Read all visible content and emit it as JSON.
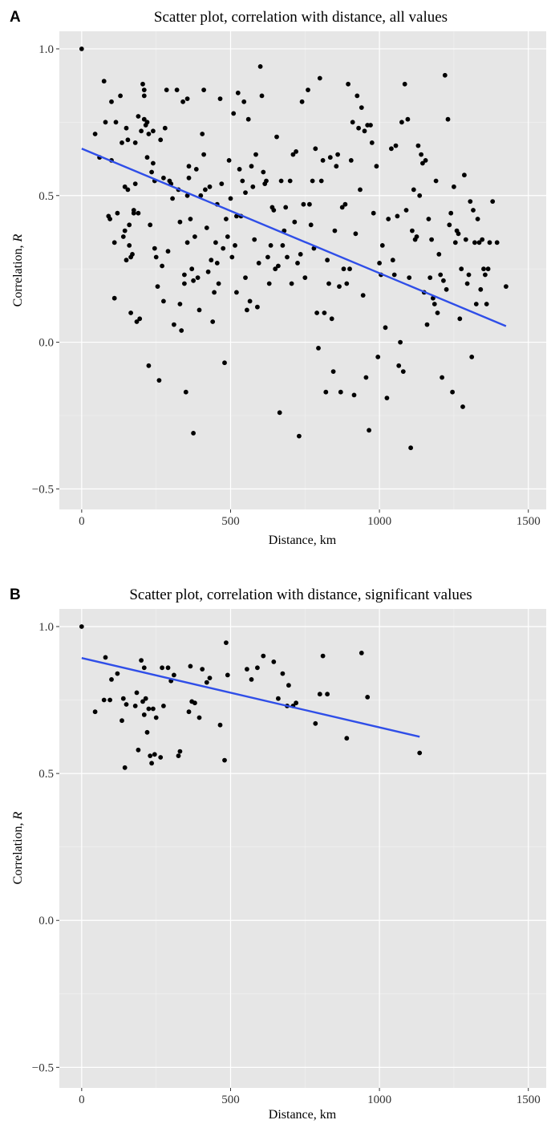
{
  "chart_data": [
    {
      "panel_label": "A",
      "type": "scatter",
      "title": "Scatter plot, correlation with distance, all values",
      "xlabel": "Distance, km",
      "ylabel_prefix": "Correlation, ",
      "ylabel_var": "R",
      "xlim": [
        -75,
        1560
      ],
      "ylim": [
        -0.57,
        1.06
      ],
      "xticks": [
        0,
        500,
        1000,
        1500
      ],
      "xtick_labels": [
        "0",
        "500",
        "1000",
        "1500"
      ],
      "yticks": [
        -0.5,
        0.0,
        0.5,
        1.0
      ],
      "ytick_labels": [
        "−0.5",
        "0.0",
        "0.5",
        "1.0"
      ],
      "grid": true,
      "regression_line": {
        "x": [
          0,
          1425
        ],
        "y": [
          0.66,
          0.055
        ]
      },
      "points": [
        [
          0,
          1.0
        ],
        [
          45,
          0.71
        ],
        [
          60,
          0.63
        ],
        [
          75,
          0.89
        ],
        [
          80,
          0.75
        ],
        [
          90,
          0.43
        ],
        [
          95,
          0.42
        ],
        [
          100,
          0.82
        ],
        [
          100,
          0.62
        ],
        [
          110,
          0.15
        ],
        [
          110,
          0.34
        ],
        [
          115,
          0.75
        ],
        [
          120,
          0.44
        ],
        [
          130,
          0.84
        ],
        [
          135,
          0.68
        ],
        [
          140,
          0.36
        ],
        [
          145,
          0.53
        ],
        [
          145,
          0.38
        ],
        [
          150,
          0.73
        ],
        [
          150,
          0.28
        ],
        [
          155,
          0.69
        ],
        [
          155,
          0.52
        ],
        [
          160,
          0.4
        ],
        [
          160,
          0.33
        ],
        [
          165,
          0.29
        ],
        [
          165,
          0.1
        ],
        [
          170,
          0.3
        ],
        [
          175,
          0.45
        ],
        [
          175,
          0.44
        ],
        [
          180,
          0.68
        ],
        [
          180,
          0.54
        ],
        [
          185,
          0.07
        ],
        [
          190,
          0.77
        ],
        [
          190,
          0.44
        ],
        [
          195,
          0.08
        ],
        [
          200,
          0.72
        ],
        [
          205,
          0.88
        ],
        [
          210,
          0.86
        ],
        [
          210,
          0.84
        ],
        [
          210,
          0.76
        ],
        [
          215,
          0.74
        ],
        [
          220,
          0.75
        ],
        [
          220,
          0.63
        ],
        [
          225,
          0.71
        ],
        [
          225,
          -0.08
        ],
        [
          230,
          0.4
        ],
        [
          235,
          0.58
        ],
        [
          240,
          0.72
        ],
        [
          240,
          0.61
        ],
        [
          245,
          0.55
        ],
        [
          245,
          0.32
        ],
        [
          250,
          0.29
        ],
        [
          255,
          0.19
        ],
        [
          260,
          -0.13
        ],
        [
          265,
          0.69
        ],
        [
          270,
          0.26
        ],
        [
          275,
          0.56
        ],
        [
          275,
          0.14
        ],
        [
          280,
          0.73
        ],
        [
          285,
          0.86
        ],
        [
          290,
          0.31
        ],
        [
          295,
          0.55
        ],
        [
          300,
          0.54
        ],
        [
          305,
          0.49
        ],
        [
          310,
          0.06
        ],
        [
          320,
          0.86
        ],
        [
          325,
          0.52
        ],
        [
          330,
          0.41
        ],
        [
          330,
          0.13
        ],
        [
          335,
          0.04
        ],
        [
          340,
          0.82
        ],
        [
          345,
          0.23
        ],
        [
          345,
          0.2
        ],
        [
          350,
          -0.17
        ],
        [
          355,
          0.83
        ],
        [
          355,
          0.5
        ],
        [
          355,
          0.34
        ],
        [
          360,
          0.6
        ],
        [
          360,
          0.56
        ],
        [
          365,
          0.42
        ],
        [
          370,
          0.25
        ],
        [
          375,
          0.21
        ],
        [
          375,
          -0.31
        ],
        [
          380,
          0.36
        ],
        [
          385,
          0.59
        ],
        [
          390,
          0.22
        ],
        [
          395,
          0.11
        ],
        [
          400,
          0.5
        ],
        [
          405,
          0.71
        ],
        [
          410,
          0.86
        ],
        [
          410,
          0.64
        ],
        [
          415,
          0.52
        ],
        [
          420,
          0.39
        ],
        [
          425,
          0.24
        ],
        [
          430,
          0.53
        ],
        [
          435,
          0.28
        ],
        [
          440,
          0.07
        ],
        [
          445,
          0.17
        ],
        [
          450,
          0.34
        ],
        [
          455,
          0.47
        ],
        [
          455,
          0.27
        ],
        [
          460,
          0.2
        ],
        [
          465,
          0.83
        ],
        [
          470,
          0.54
        ],
        [
          475,
          0.32
        ],
        [
          480,
          -0.07
        ],
        [
          485,
          0.42
        ],
        [
          490,
          0.36
        ],
        [
          495,
          0.62
        ],
        [
          500,
          0.49
        ],
        [
          505,
          0.29
        ],
        [
          510,
          0.78
        ],
        [
          515,
          0.33
        ],
        [
          520,
          0.43
        ],
        [
          520,
          0.17
        ],
        [
          525,
          0.85
        ],
        [
          530,
          0.59
        ],
        [
          535,
          0.43
        ],
        [
          540,
          0.55
        ],
        [
          545,
          0.82
        ],
        [
          550,
          0.51
        ],
        [
          550,
          0.22
        ],
        [
          555,
          0.11
        ],
        [
          560,
          0.76
        ],
        [
          565,
          0.14
        ],
        [
          570,
          0.6
        ],
        [
          575,
          0.53
        ],
        [
          580,
          0.35
        ],
        [
          585,
          0.64
        ],
        [
          590,
          0.12
        ],
        [
          595,
          0.27
        ],
        [
          600,
          0.94
        ],
        [
          605,
          0.84
        ],
        [
          610,
          0.58
        ],
        [
          615,
          0.54
        ],
        [
          620,
          0.55
        ],
        [
          625,
          0.29
        ],
        [
          630,
          0.2
        ],
        [
          635,
          0.33
        ],
        [
          640,
          0.46
        ],
        [
          645,
          0.45
        ],
        [
          650,
          0.25
        ],
        [
          655,
          0.7
        ],
        [
          660,
          0.26
        ],
        [
          665,
          -0.24
        ],
        [
          670,
          0.55
        ],
        [
          675,
          0.33
        ],
        [
          680,
          0.38
        ],
        [
          685,
          0.46
        ],
        [
          690,
          0.29
        ],
        [
          700,
          0.55
        ],
        [
          705,
          0.2
        ],
        [
          710,
          0.64
        ],
        [
          715,
          0.41
        ],
        [
          720,
          0.65
        ],
        [
          725,
          0.27
        ],
        [
          730,
          -0.32
        ],
        [
          735,
          0.3
        ],
        [
          740,
          0.82
        ],
        [
          745,
          0.47
        ],
        [
          750,
          0.22
        ],
        [
          760,
          0.86
        ],
        [
          765,
          0.47
        ],
        [
          770,
          0.4
        ],
        [
          775,
          0.55
        ],
        [
          780,
          0.32
        ],
        [
          785,
          0.66
        ],
        [
          790,
          0.1
        ],
        [
          795,
          -0.02
        ],
        [
          800,
          0.9
        ],
        [
          805,
          0.55
        ],
        [
          810,
          0.62
        ],
        [
          815,
          0.1
        ],
        [
          820,
          -0.17
        ],
        [
          825,
          0.28
        ],
        [
          830,
          0.2
        ],
        [
          835,
          0.63
        ],
        [
          840,
          0.08
        ],
        [
          845,
          -0.1
        ],
        [
          850,
          0.38
        ],
        [
          855,
          0.6
        ],
        [
          860,
          0.64
        ],
        [
          865,
          0.19
        ],
        [
          870,
          -0.17
        ],
        [
          875,
          0.46
        ],
        [
          880,
          0.25
        ],
        [
          885,
          0.47
        ],
        [
          890,
          0.2
        ],
        [
          895,
          0.88
        ],
        [
          900,
          0.25
        ],
        [
          905,
          0.62
        ],
        [
          910,
          0.75
        ],
        [
          915,
          -0.18
        ],
        [
          920,
          0.37
        ],
        [
          925,
          0.84
        ],
        [
          930,
          0.73
        ],
        [
          935,
          0.52
        ],
        [
          940,
          0.8
        ],
        [
          945,
          0.16
        ],
        [
          950,
          0.72
        ],
        [
          955,
          -0.12
        ],
        [
          960,
          0.74
        ],
        [
          965,
          -0.3
        ],
        [
          970,
          0.74
        ],
        [
          975,
          0.68
        ],
        [
          980,
          0.44
        ],
        [
          990,
          0.6
        ],
        [
          995,
          -0.05
        ],
        [
          1000,
          0.27
        ],
        [
          1005,
          0.23
        ],
        [
          1010,
          0.33
        ],
        [
          1020,
          0.05
        ],
        [
          1025,
          -0.19
        ],
        [
          1030,
          0.42
        ],
        [
          1040,
          0.66
        ],
        [
          1045,
          0.28
        ],
        [
          1050,
          0.23
        ],
        [
          1055,
          0.67
        ],
        [
          1060,
          0.43
        ],
        [
          1065,
          -0.08
        ],
        [
          1070,
          0.0
        ],
        [
          1075,
          0.75
        ],
        [
          1080,
          -0.1
        ],
        [
          1085,
          0.88
        ],
        [
          1090,
          0.45
        ],
        [
          1095,
          0.76
        ],
        [
          1100,
          0.22
        ],
        [
          1105,
          -0.36
        ],
        [
          1110,
          0.38
        ],
        [
          1115,
          0.52
        ],
        [
          1120,
          0.35
        ],
        [
          1125,
          0.36
        ],
        [
          1130,
          0.67
        ],
        [
          1135,
          0.5
        ],
        [
          1140,
          0.64
        ],
        [
          1145,
          0.61
        ],
        [
          1150,
          0.17
        ],
        [
          1155,
          0.62
        ],
        [
          1160,
          0.06
        ],
        [
          1165,
          0.42
        ],
        [
          1170,
          0.22
        ],
        [
          1175,
          0.35
        ],
        [
          1180,
          0.15
        ],
        [
          1185,
          0.13
        ],
        [
          1190,
          0.55
        ],
        [
          1195,
          0.1
        ],
        [
          1200,
          0.3
        ],
        [
          1205,
          0.23
        ],
        [
          1210,
          -0.12
        ],
        [
          1215,
          0.21
        ],
        [
          1220,
          0.91
        ],
        [
          1225,
          0.18
        ],
        [
          1230,
          0.76
        ],
        [
          1235,
          0.4
        ],
        [
          1240,
          0.44
        ],
        [
          1245,
          -0.17
        ],
        [
          1250,
          0.53
        ],
        [
          1255,
          0.34
        ],
        [
          1260,
          0.38
        ],
        [
          1265,
          0.37
        ],
        [
          1270,
          0.08
        ],
        [
          1275,
          0.25
        ],
        [
          1280,
          -0.22
        ],
        [
          1285,
          0.57
        ],
        [
          1290,
          0.35
        ],
        [
          1295,
          0.2
        ],
        [
          1300,
          0.23
        ],
        [
          1305,
          0.48
        ],
        [
          1310,
          -0.05
        ],
        [
          1315,
          0.45
        ],
        [
          1320,
          0.34
        ],
        [
          1325,
          0.13
        ],
        [
          1330,
          0.42
        ],
        [
          1335,
          0.34
        ],
        [
          1340,
          0.18
        ],
        [
          1345,
          0.35
        ],
        [
          1350,
          0.25
        ],
        [
          1355,
          0.23
        ],
        [
          1360,
          0.13
        ],
        [
          1365,
          0.25
        ],
        [
          1370,
          0.34
        ],
        [
          1380,
          0.48
        ],
        [
          1395,
          0.34
        ],
        [
          1425,
          0.19
        ]
      ]
    },
    {
      "panel_label": "B",
      "type": "scatter",
      "title": "Scatter plot, correlation with distance, significant values",
      "xlabel": "Distance, km",
      "ylabel_prefix": "Correlation, ",
      "ylabel_var": "R",
      "xlim": [
        -75,
        1560
      ],
      "ylim": [
        -0.57,
        1.06
      ],
      "xticks": [
        0,
        500,
        1000,
        1500
      ],
      "xtick_labels": [
        "0",
        "500",
        "1000",
        "1500"
      ],
      "yticks": [
        -0.5,
        0.0,
        0.5,
        1.0
      ],
      "ytick_labels": [
        "−0.5",
        "0.0",
        "0.5",
        "1.0"
      ],
      "grid": true,
      "regression_line": {
        "x": [
          0,
          1135
        ],
        "y": [
          0.893,
          0.625
        ]
      },
      "points": [
        [
          0,
          1.0
        ],
        [
          45,
          0.71
        ],
        [
          75,
          0.75
        ],
        [
          80,
          0.895
        ],
        [
          95,
          0.75
        ],
        [
          100,
          0.82
        ],
        [
          120,
          0.84
        ],
        [
          135,
          0.68
        ],
        [
          140,
          0.755
        ],
        [
          145,
          0.52
        ],
        [
          150,
          0.735
        ],
        [
          180,
          0.73
        ],
        [
          185,
          0.775
        ],
        [
          190,
          0.58
        ],
        [
          200,
          0.885
        ],
        [
          205,
          0.745
        ],
        [
          210,
          0.7
        ],
        [
          210,
          0.86
        ],
        [
          215,
          0.755
        ],
        [
          220,
          0.64
        ],
        [
          225,
          0.72
        ],
        [
          230,
          0.56
        ],
        [
          235,
          0.535
        ],
        [
          240,
          0.72
        ],
        [
          245,
          0.565
        ],
        [
          250,
          0.69
        ],
        [
          265,
          0.555
        ],
        [
          270,
          0.86
        ],
        [
          275,
          0.73
        ],
        [
          290,
          0.86
        ],
        [
          300,
          0.815
        ],
        [
          310,
          0.835
        ],
        [
          325,
          0.56
        ],
        [
          330,
          0.575
        ],
        [
          360,
          0.71
        ],
        [
          365,
          0.865
        ],
        [
          370,
          0.745
        ],
        [
          380,
          0.74
        ],
        [
          395,
          0.69
        ],
        [
          405,
          0.855
        ],
        [
          420,
          0.81
        ],
        [
          430,
          0.825
        ],
        [
          465,
          0.665
        ],
        [
          480,
          0.545
        ],
        [
          485,
          0.945
        ],
        [
          490,
          0.835
        ],
        [
          555,
          0.855
        ],
        [
          570,
          0.82
        ],
        [
          590,
          0.86
        ],
        [
          610,
          0.9
        ],
        [
          645,
          0.88
        ],
        [
          660,
          0.755
        ],
        [
          675,
          0.84
        ],
        [
          690,
          0.73
        ],
        [
          695,
          0.8
        ],
        [
          710,
          0.73
        ],
        [
          720,
          0.74
        ],
        [
          785,
          0.67
        ],
        [
          800,
          0.77
        ],
        [
          810,
          0.9
        ],
        [
          825,
          0.77
        ],
        [
          890,
          0.62
        ],
        [
          940,
          0.91
        ],
        [
          960,
          0.76
        ],
        [
          1135,
          0.57
        ]
      ]
    }
  ]
}
